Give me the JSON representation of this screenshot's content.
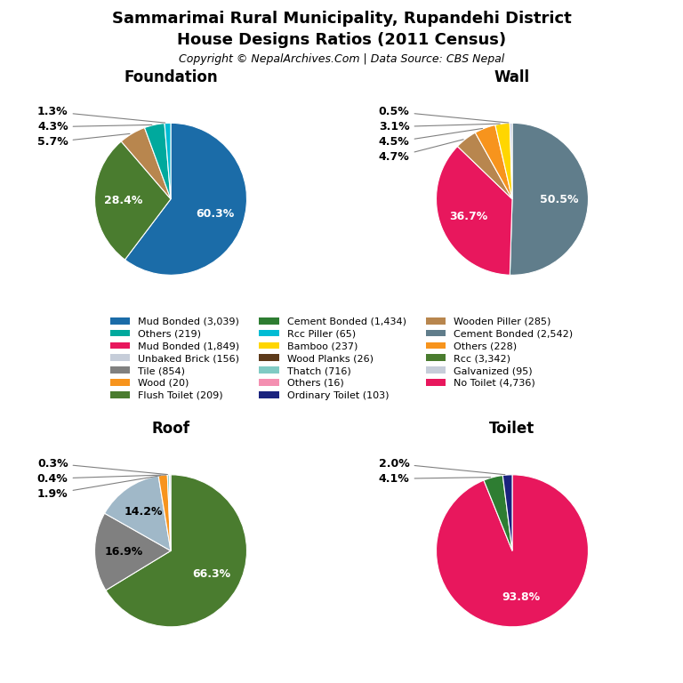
{
  "title": "Sammarimai Rural Municipality, Rupandehi District",
  "subtitle": "House Designs Ratios (2011 Census)",
  "annotations": [
    "Copyright © NepalArchives.Com | Data Source: CBS Nepal"
  ],
  "legend": "center",
  "legend_entries": [
    {
      "name": "Mud Bonded (3,039)",
      "color": "#1b6ca8"
    },
    {
      "name": "Others (219)",
      "color": "#00a99d"
    },
    {
      "name": "Mud Bonded (1,849)",
      "color": "#e8175d"
    },
    {
      "name": "Unbaked Brick (156)",
      "color": "#c6cdd9"
    },
    {
      "name": "Tile (854)",
      "color": "#808080"
    },
    {
      "name": "Wood (20)",
      "color": "#f7941d"
    },
    {
      "name": "Flush Toilet (209)",
      "color": "#4a7c2f"
    },
    {
      "name": "Cement Bonded (1,434)",
      "color": "#2e7d32"
    },
    {
      "name": "Rcc Piller (65)",
      "color": "#00bcd4"
    },
    {
      "name": "Bamboo (237)",
      "color": "#ffd600"
    },
    {
      "name": "Wood Planks (26)",
      "color": "#5d3a1a"
    },
    {
      "name": "Thatch (716)",
      "color": "#80cbc4"
    },
    {
      "name": "Others (16)",
      "color": "#f48fb1"
    },
    {
      "name": "Ordinary Toilet (103)",
      "color": "#1a237e"
    },
    {
      "name": "Wooden Piller (285)",
      "color": "#b8864e"
    },
    {
      "name": "Cement Bonded (2,542)",
      "color": "#607d8b"
    },
    {
      "name": "Others (228)",
      "color": "#f7941d"
    },
    {
      "name": "Rcc (3,342)",
      "color": "#4a7c2f"
    },
    {
      "name": "Galvanized (95)",
      "color": "#c6cdd9"
    },
    {
      "name": "No Toilet (4,736)",
      "color": "#e8175d"
    }
  ],
  "chart_data": [
    {
      "type": "pie",
      "title": "Foundation",
      "values": [
        60.3,
        28.4,
        5.7,
        4.3,
        1.3
      ],
      "value_labels": [
        "60.3%",
        "28.4%",
        "5.7%",
        "4.3%",
        "1.3%"
      ],
      "colors": [
        "#1b6ca8",
        "#4a7c2f",
        "#b8864e",
        "#00a99d",
        "#00bcd4"
      ],
      "data_labels": true
    },
    {
      "type": "pie",
      "title": "Wall",
      "values": [
        50.5,
        36.7,
        4.7,
        4.5,
        3.1,
        0.5
      ],
      "value_labels": [
        "50.5%",
        "36.7%",
        "4.7%",
        "4.5%",
        "3.1%",
        "0.5%"
      ],
      "colors": [
        "#607d8b",
        "#e8175d",
        "#b8864e",
        "#f7941d",
        "#ffd600",
        "#c6cdd9"
      ],
      "data_labels": true
    },
    {
      "type": "pie",
      "title": "Roof",
      "values": [
        66.3,
        16.9,
        14.2,
        1.9,
        0.4,
        0.3
      ],
      "value_labels": [
        "66.3%",
        "16.9%",
        "14.2%",
        "1.9%",
        "0.4%",
        "0.3%"
      ],
      "colors": [
        "#4a7c2f",
        "#808080",
        "#a0b8c8",
        "#f7941d",
        "#80cbc4",
        "#c6cdd9"
      ],
      "data_labels": true
    },
    {
      "type": "pie",
      "title": "Toilet",
      "values": [
        93.8,
        4.1,
        2.0
      ],
      "value_labels": [
        "93.8%",
        "4.1%",
        "2.0%"
      ],
      "colors": [
        "#e8175d",
        "#2e7d32",
        "#1a237e"
      ],
      "data_labels": true
    }
  ]
}
